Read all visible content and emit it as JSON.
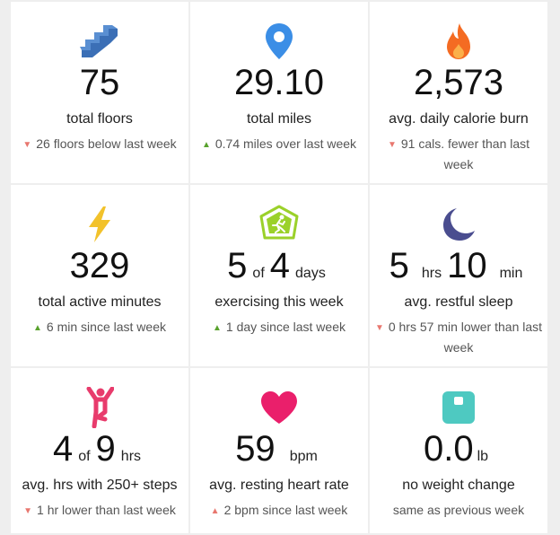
{
  "tiles": [
    {
      "icon": "stairs-icon",
      "value": "75",
      "label": "total floors",
      "delta": "26 floors below last week",
      "trend": "down"
    },
    {
      "icon": "location-pin-icon",
      "value": "29.10",
      "label": "total miles",
      "delta": "0.74 miles over last week",
      "trend": "up-green"
    },
    {
      "icon": "flame-icon",
      "value": "2,573",
      "label": "avg. daily calorie burn",
      "delta": "91 cals. fewer than last week",
      "trend": "down"
    },
    {
      "icon": "lightning-bolt-icon",
      "value": "329",
      "label": "total active minutes",
      "delta": "6 min since last week",
      "trend": "up-green"
    },
    {
      "icon": "running-person-badge-icon",
      "value": "5",
      "of": "of",
      "value2": "4",
      "unit": "days",
      "label": "exercising this week",
      "delta": "1 day since last week",
      "trend": "up-green"
    },
    {
      "icon": "moon-icon",
      "value": "5",
      "unit": "hrs",
      "value2": "10",
      "unit2": "min",
      "label": "avg. restful sleep",
      "delta": "0 hrs 57 min lower than last week",
      "trend": "down"
    },
    {
      "icon": "person-raising-arms-icon",
      "value": "4",
      "of": "of",
      "value2": "9",
      "unit": "hrs",
      "label": "avg. hrs with 250+ steps",
      "delta": "1 hr lower than last week",
      "trend": "down"
    },
    {
      "icon": "heart-icon",
      "value": "59",
      "unit": "bpm",
      "label": "avg. resting heart rate",
      "delta": "2 bpm since last week",
      "trend": "up-red"
    },
    {
      "icon": "scale-icon",
      "value": "0.0",
      "unit": "lb",
      "label": "no weight change",
      "delta": "same as previous week",
      "trend": "none"
    }
  ],
  "trend_symbols": {
    "down": "▼",
    "up": "▲"
  },
  "colors": {
    "stairs": "#3b6fb6",
    "pin": "#3b8ee6",
    "flame": "#f46b22",
    "bolt": "#f2c22b",
    "badge": "#9bd12a",
    "moon": "#4a4d8f",
    "person": "#e83b6c",
    "heart": "#e83b6c",
    "scale": "#4ec9c1",
    "down": "#e8776f",
    "up": "#59a22d"
  }
}
